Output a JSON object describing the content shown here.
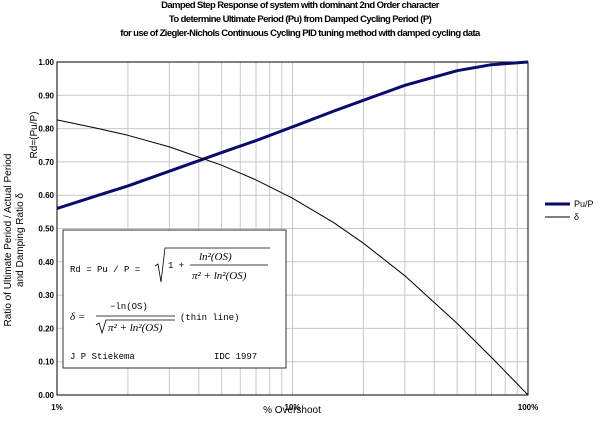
{
  "header": {
    "line1": "Damped Step Response of system with dominant 2nd Order character",
    "line2": "To determine Ultimate Period (Pu) from Damped Cycling Period (P)",
    "line3": "for use of Ziegler-Nichols Continuous Cycling PID tuning method with damped cycling data"
  },
  "chart_data": {
    "type": "line",
    "xscale": "log",
    "xlim": [
      1,
      100
    ],
    "ylim": [
      0,
      1
    ],
    "xlabel": "% Overshoot",
    "ylabel_lines": [
      "Ratio of Ultimate Period / Actual Period",
      "and Damping Ratio δ"
    ],
    "ylabel_side": "Rd=(Pu/P)",
    "x_tick_labels": [
      "1%",
      "10%",
      "100%"
    ],
    "y_tick_labels": [
      "0.00",
      "0.10",
      "0.20",
      "0.30",
      "0.40",
      "0.50",
      "0.60",
      "0.70",
      "0.80",
      "0.90",
      "1.00"
    ],
    "grid": true,
    "legend_position": "right",
    "series": [
      {
        "name": "Pu/P",
        "color": "#0a0a6e",
        "width": "thick",
        "x": [
          1,
          1.5,
          2,
          3,
          5,
          7,
          10,
          15,
          20,
          30,
          50,
          70,
          100
        ],
        "y": [
          0.56,
          0.6,
          0.628,
          0.672,
          0.728,
          0.764,
          0.805,
          0.853,
          0.885,
          0.93,
          0.974,
          0.992,
          1.0
        ]
      },
      {
        "name": "δ",
        "color": "#000000",
        "width": "thin",
        "x": [
          1,
          1.5,
          2,
          3,
          5,
          7,
          10,
          15,
          20,
          30,
          50,
          70,
          100
        ],
        "y": [
          0.826,
          0.8,
          0.78,
          0.745,
          0.69,
          0.646,
          0.591,
          0.517,
          0.456,
          0.358,
          0.215,
          0.113,
          0.0
        ]
      }
    ]
  },
  "formula_box": {
    "rd_lhs": "Rd = Pu / P =",
    "rd_one_plus": "1 +",
    "rd_num": "ln²(OS)",
    "rd_den": "π² + ln²(OS)",
    "delta_lhs": "δ =",
    "delta_num": "−ln(OS)",
    "delta_den": "π² + ln²(OS)",
    "thin_line": "(thin line)",
    "author": "J P Stiekema",
    "org": "IDC 1997"
  }
}
